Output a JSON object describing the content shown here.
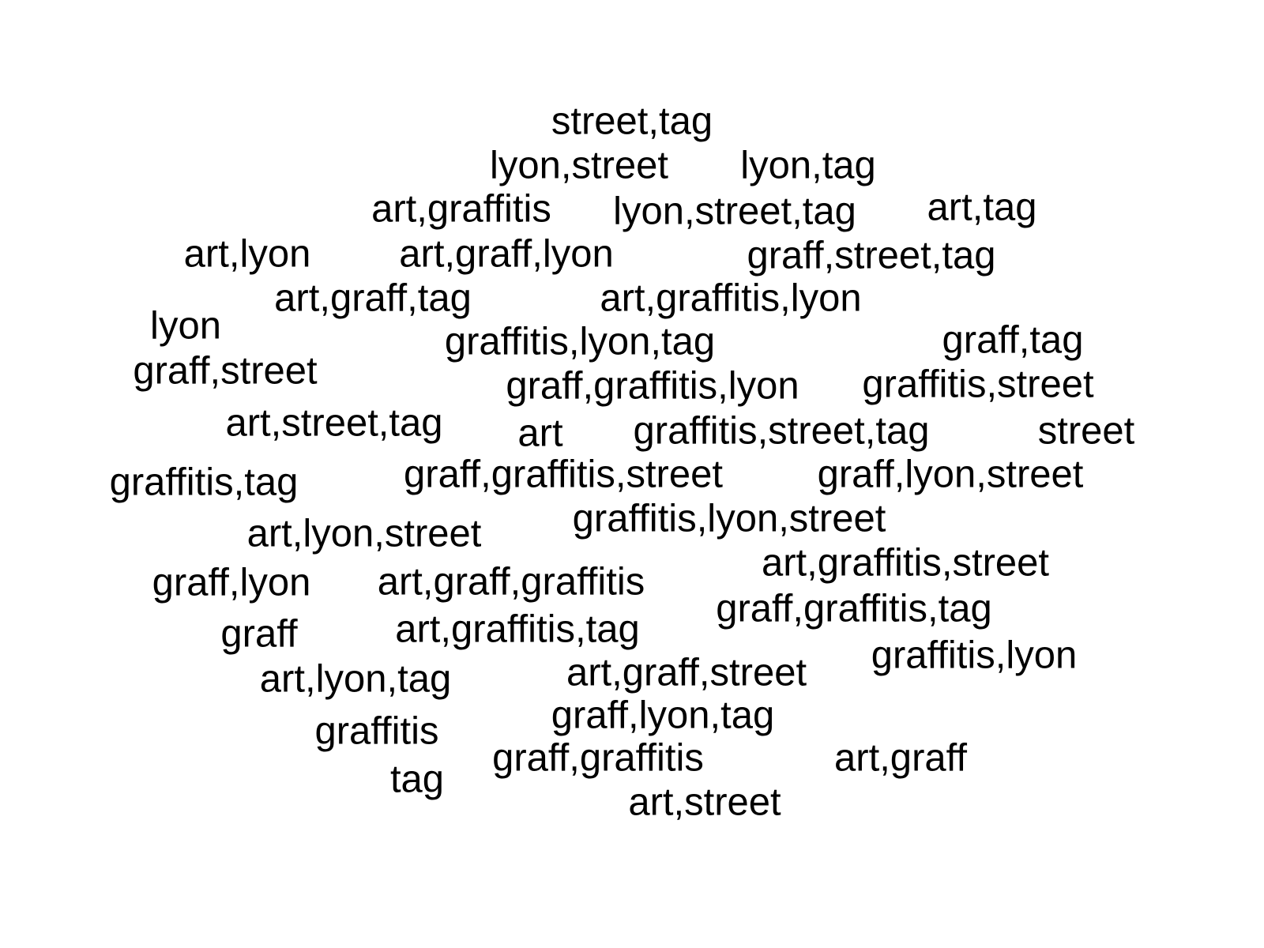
{
  "words": [
    "street,tag",
    "lyon,street",
    "lyon,tag",
    "art,graffitis",
    "lyon,street,tag",
    "art,tag",
    "art,lyon",
    "art,graff,lyon",
    "graff,street,tag",
    "art,graff,tag",
    "art,graffitis,lyon",
    "lyon",
    "graffitis,lyon,tag",
    "graff,tag",
    "graff,street",
    "graff,graffitis,lyon",
    "graffitis,street",
    "art,street,tag",
    "art",
    "graffitis,street,tag",
    "street",
    "graffitis,tag",
    "graff,graffitis,street",
    "graff,lyon,street",
    "art,lyon,street",
    "graffitis,lyon,street",
    "art,graffitis,street",
    "graff,lyon",
    "art,graff,graffitis",
    "graff,graffitis,tag",
    "graff",
    "art,graffitis,tag",
    "graffitis,lyon",
    "art,lyon,tag",
    "art,graff,street",
    "graff,lyon,tag",
    "graffitis",
    "graff,graffitis",
    "art,graff",
    "tag",
    "art,street"
  ]
}
